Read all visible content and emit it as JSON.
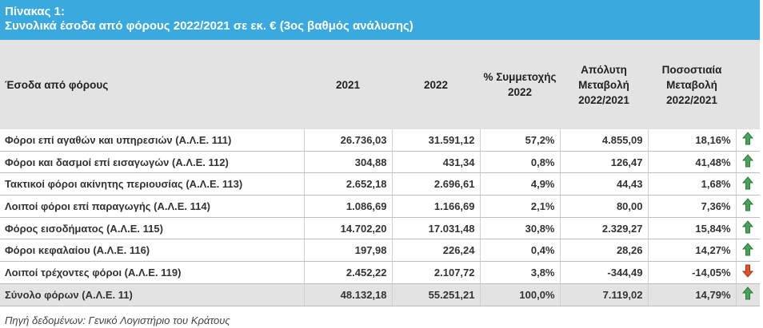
{
  "header": {
    "title": "Πίνακας 1:",
    "subtitle": "Συνολικά έσοδα από φόρους 2022/2021 σε εκ. € (3ος βαθμός ανάλυσης)"
  },
  "table": {
    "columns": [
      "Έσοδα από φόρους",
      "2021",
      "2022",
      "% Συμμετοχής 2022",
      "Απόλυτη Μεταβολή 2022/2021",
      "Ποσοστιαία Μεταβολή 2022/2021"
    ],
    "rows": [
      [
        "Φόροι επί αγαθών και υπηρεσιών (Α.Λ.Ε. 111)",
        "26.736,03",
        "31.591,12",
        "57,2%",
        "4.855,09",
        "18,16%"
      ],
      [
        "Φόροι και δασμοί επί εισαγωγών (Α.Λ.Ε. 112)",
        "304,88",
        "431,34",
        "0,8%",
        "126,47",
        "41,48%"
      ],
      [
        "Τακτικοί φόροι ακίνητης περιουσίας (Α.Λ.Ε. 113)",
        "2.652,18",
        "2.696,61",
        "4,9%",
        "44,43",
        "1,68%"
      ],
      [
        "Λοιποί φόροι επί παραγωγής (Α.Λ.Ε. 114)",
        "1.086,69",
        "1.166,69",
        "2,1%",
        "80,00",
        "7,36%"
      ],
      [
        "Φόρος εισοδήματος (Α.Λ.Ε. 115)",
        "14.702,20",
        "17.031,48",
        "30,8%",
        "2.329,27",
        "15,84%"
      ],
      [
        "Φόροι κεφαλαίου (Α.Λ.Ε. 116)",
        "197,98",
        "226,24",
        "0,4%",
        "28,26",
        "14,27%"
      ],
      [
        "Λοιποί τρέχοντες φόροι (Α.Λ.Ε. 119)",
        "2.452,22",
        "2.107,72",
        "3,8%",
        "-344,49",
        "-14,05%"
      ],
      [
        "Σύνολο φόρων (Α.Λ.Ε. 11)",
        "48.132,18",
        "55.251,21",
        "100,0%",
        "7.119,02",
        "14,79%"
      ]
    ]
  },
  "footer": {
    "source": "Πηγή δεδομένων: Γενικό Λογιστήριο του Κράτους"
  }
}
